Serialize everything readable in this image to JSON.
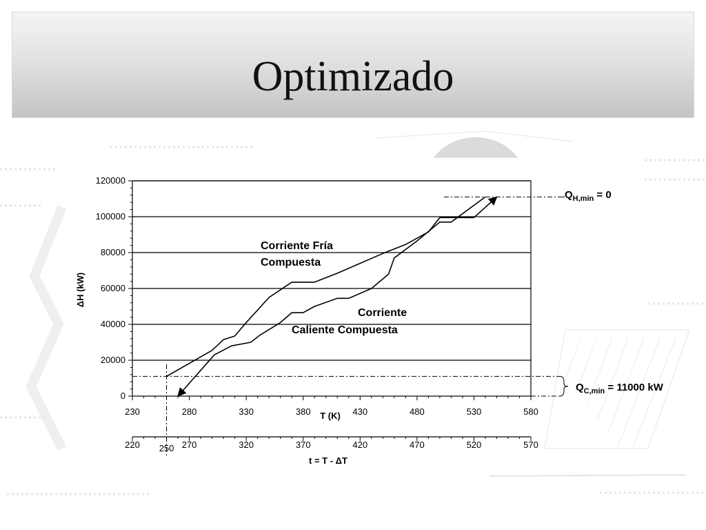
{
  "slide": {
    "title": "Optimizado"
  },
  "chart_data": {
    "type": "line",
    "title": "",
    "ylabel": "ΔH (kW)",
    "xlabel": "T (K)",
    "x2label": "t = T - ΔT",
    "xlim": [
      230,
      580
    ],
    "ylim": [
      0,
      120000
    ],
    "x_ticks": [
      230,
      280,
      330,
      380,
      430,
      480,
      530,
      580
    ],
    "y_ticks": [
      0,
      20000,
      40000,
      60000,
      80000,
      100000,
      120000
    ],
    "x2_ticks": [
      220,
      250,
      270,
      320,
      370,
      420,
      470,
      520,
      570
    ],
    "grid": "horizontal",
    "series": [
      {
        "label": [
          "Corriente Fría",
          "Compuesta"
        ],
        "x": [
          260,
          300,
          310,
          320,
          330,
          350,
          370,
          390,
          410,
          430,
          450,
          470,
          490,
          500,
          530,
          550
        ],
        "y": [
          11000,
          25500,
          31500,
          33500,
          41000,
          55000,
          63500,
          63500,
          68500,
          74000,
          79500,
          84500,
          91500,
          99500,
          99500,
          111000
        ]
      },
      {
        "label": [
          "Corriente",
          "Caliente Compuesta"
        ],
        "x": [
          270,
          302,
          317,
          334,
          342,
          360,
          370,
          380,
          390,
          410,
          420,
          440,
          455,
          460,
          480,
          500,
          510,
          540
        ],
        "y": [
          0,
          23000,
          28000,
          30000,
          34000,
          41000,
          46500,
          46500,
          50000,
          54500,
          54500,
          60000,
          68000,
          77000,
          86500,
          97000,
          97000,
          111000
        ]
      }
    ],
    "annotations": {
      "qh": {
        "main": "Q",
        "sub": "H,min",
        "rest": " = 0",
        "value": 0
      },
      "qc": {
        "main": "Q",
        "sub": "C,min",
        "rest": " = 11000 kW",
        "value": 11000
      }
    }
  }
}
